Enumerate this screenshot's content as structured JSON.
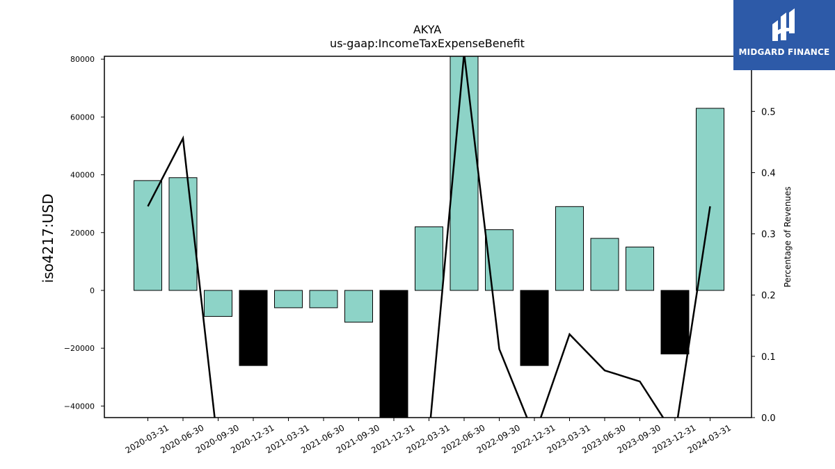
{
  "chart_data": {
    "type": "bar",
    "title": "AKYA",
    "subtitle": "us-gaap:IncomeTaxExpenseBenefit",
    "ylabel": "iso4217:USD",
    "y2label": "Percentage of Revenues",
    "categories": [
      "2020-03-31",
      "2020-06-30",
      "2020-09-30",
      "2020-12-31",
      "2021-03-31",
      "2021-06-30",
      "2021-09-30",
      "2021-12-31",
      "2022-03-31",
      "2022-06-30",
      "2022-09-30",
      "2022-12-31",
      "2023-03-31",
      "2023-06-30",
      "2023-09-30",
      "2023-12-31",
      "2024-03-31"
    ],
    "series": [
      {
        "type": "bar",
        "values": [
          38000,
          39000,
          -9000,
          -26000,
          -6000,
          -6000,
          -11000,
          -44000,
          22000,
          81000,
          21000,
          -26000,
          29000,
          18000,
          15000,
          -22000,
          63000
        ],
        "colors": [
          "#8dd3c7",
          "#8dd3c7",
          "#8dd3c7",
          "#000000",
          "#8dd3c7",
          "#8dd3c7",
          "#8dd3c7",
          "#000000",
          "#8dd3c7",
          "#8dd3c7",
          "#8dd3c7",
          "#000000",
          "#8dd3c7",
          "#8dd3c7",
          "#8dd3c7",
          "#000000",
          "#8dd3c7"
        ]
      },
      {
        "type": "line",
        "axis": "right",
        "color": "#000000",
        "values": [
          0.345,
          0.456,
          -0.05,
          null,
          null,
          null,
          null,
          null,
          -0.03,
          0.595,
          0.112,
          -0.03,
          0.136,
          0.077,
          0.059,
          -0.03,
          0.345
        ]
      }
    ],
    "yticks": [
      "80000",
      "60000",
      "40000",
      "20000",
      "0",
      "−20000",
      "−40000"
    ],
    "ylim": [
      -44000,
      81000
    ],
    "y2ticks": [
      "0.0",
      "0.1",
      "0.2",
      "0.3",
      "0.4",
      "0.5"
    ],
    "y2lim": [
      0.0,
      0.59
    ]
  },
  "logo": {
    "text": "MIDGARD FINANCE",
    "bg": "#2d5aa8"
  }
}
